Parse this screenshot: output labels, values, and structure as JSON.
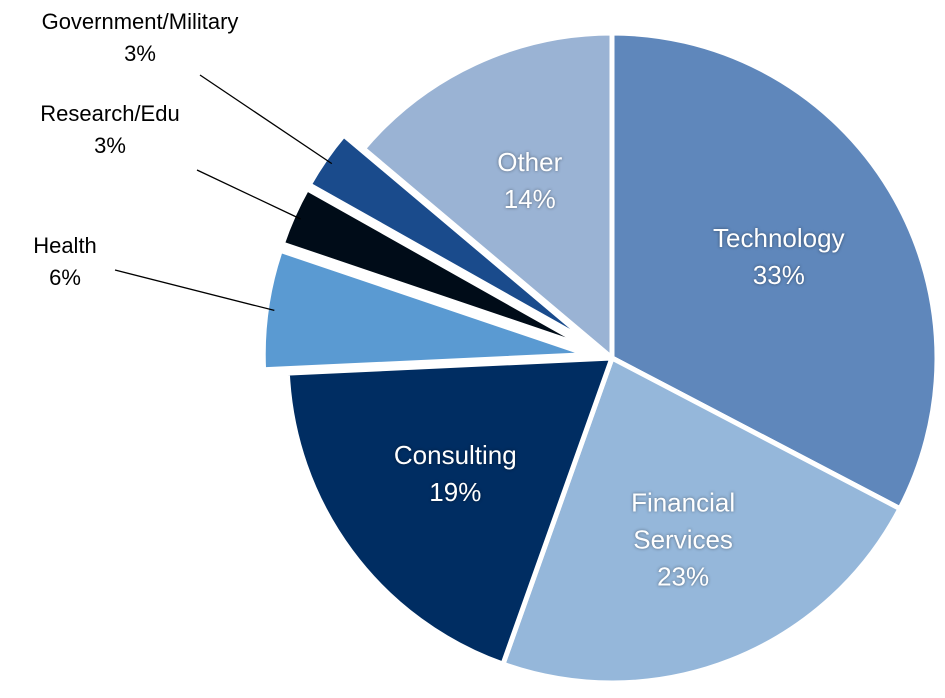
{
  "chart_data": {
    "type": "pie",
    "categories": [
      "Technology",
      "Financial Services",
      "Consulting",
      "Health",
      "Research/Edu",
      "Government/Military",
      "Other"
    ],
    "values": [
      33,
      23,
      19,
      6,
      3,
      3,
      14
    ],
    "value_labels": [
      "33%",
      "23%",
      "19%",
      "6%",
      "3%",
      "3%",
      "14%"
    ],
    "colors": [
      "#5f87bb",
      "#95b7da",
      "#002d62",
      "#5a9ad2",
      "#000c18",
      "#1a4b8c",
      "#9ab3d4"
    ]
  }
}
